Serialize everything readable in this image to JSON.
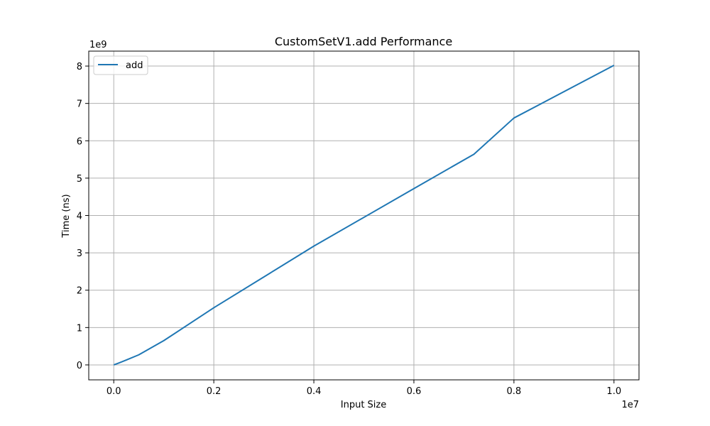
{
  "chart_data": {
    "type": "line",
    "title": "CustomSetV1.add Performance",
    "xlabel": "Input Size",
    "ylabel": "Time (ns)",
    "x_offset_label": "1e7",
    "y_offset_label": "1e9",
    "x_ticks": [
      "0.0",
      "0.2",
      "0.4",
      "0.6",
      "0.8",
      "1.0"
    ],
    "y_ticks": [
      "0",
      "1",
      "2",
      "3",
      "4",
      "5",
      "6",
      "7",
      "8"
    ],
    "xlim": [
      -0.05,
      1.05
    ],
    "ylim": [
      -0.4,
      8.4
    ],
    "x_tick_values": [
      0,
      0.2,
      0.4,
      0.6,
      0.8,
      1.0
    ],
    "y_tick_values": [
      0,
      1,
      2,
      3,
      4,
      5,
      6,
      7,
      8
    ],
    "grid": true,
    "legend_position": "top-left",
    "series": [
      {
        "name": "add",
        "color": "#1f77b4",
        "x": [
          0,
          0.01,
          0.025,
          0.05,
          0.1,
          0.2,
          0.4,
          0.6,
          0.72,
          0.8,
          1.0
        ],
        "y": [
          0,
          0.05,
          0.13,
          0.27,
          0.65,
          1.53,
          3.18,
          4.72,
          5.64,
          6.61,
          8.02
        ]
      }
    ]
  }
}
